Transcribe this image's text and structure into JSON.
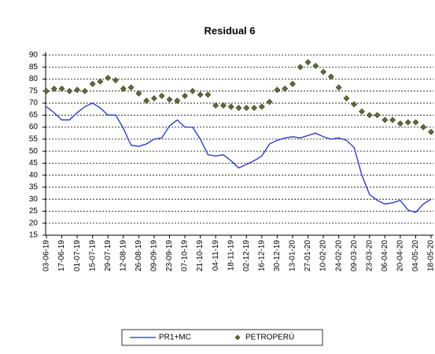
{
  "chart_data": {
    "type": "line",
    "title": "Residual 6",
    "categories": [
      "03-06-19",
      null,
      "17-06-19",
      null,
      "01-07-19",
      null,
      "15-07-19",
      null,
      "29-07-19",
      null,
      "12-08-19",
      null,
      "26-08-19",
      null,
      "09-09-19",
      null,
      "23-09-19",
      null,
      "07-10-19",
      null,
      "21-10-19",
      null,
      "04-11-19",
      null,
      "18-11-19",
      null,
      "02-12-19",
      null,
      "16-12-19",
      null,
      "30-12-19",
      null,
      "13-01-20",
      null,
      "27-01-20",
      null,
      "10-02-20",
      null,
      "24-02-20",
      null,
      "09-03-20",
      null,
      "23-03-20",
      null,
      "06-04-20",
      null,
      "20-04-20",
      null,
      "04-05-20",
      null,
      "18-05-20"
    ],
    "series": [
      {
        "name": "PR1+MC",
        "color": "#1f2fd6",
        "style": "line",
        "values": [
          68.5,
          66,
          63,
          63,
          66,
          68.5,
          70,
          68,
          65,
          65,
          59.5,
          52.5,
          52,
          53,
          55,
          55.5,
          60.5,
          63,
          60,
          60,
          55,
          48.5,
          48,
          48.5,
          46,
          43,
          44.5,
          46,
          48,
          53,
          54.5,
          55.5,
          56,
          55.5,
          56.5,
          57.5,
          56,
          55,
          55.5,
          54.5,
          51.5,
          40,
          32,
          29.5,
          28,
          28.5,
          29.5,
          25.5,
          24.5,
          28,
          30
        ]
      },
      {
        "name": "PETROPERÚ",
        "color": "#5e6e38",
        "style": "marker",
        "values": [
          75,
          76,
          76,
          75,
          75.5,
          75,
          78,
          79,
          80.5,
          79.5,
          76,
          76.5,
          74,
          71,
          72,
          73,
          71.5,
          71,
          73,
          75,
          73.5,
          73.5,
          69,
          69,
          68.5,
          68,
          68,
          68,
          68.5,
          70.5,
          75.5,
          76,
          78,
          85,
          87,
          85.5,
          83,
          81,
          76.5,
          72,
          69.5,
          66.5,
          65,
          65,
          63,
          63,
          61.5,
          62,
          62,
          60,
          58
        ]
      }
    ],
    "ylim": [
      15,
      90
    ],
    "yticks": [
      15,
      20,
      25,
      30,
      35,
      40,
      45,
      50,
      55,
      60,
      65,
      70,
      75,
      80,
      85,
      90
    ],
    "grid": true
  }
}
